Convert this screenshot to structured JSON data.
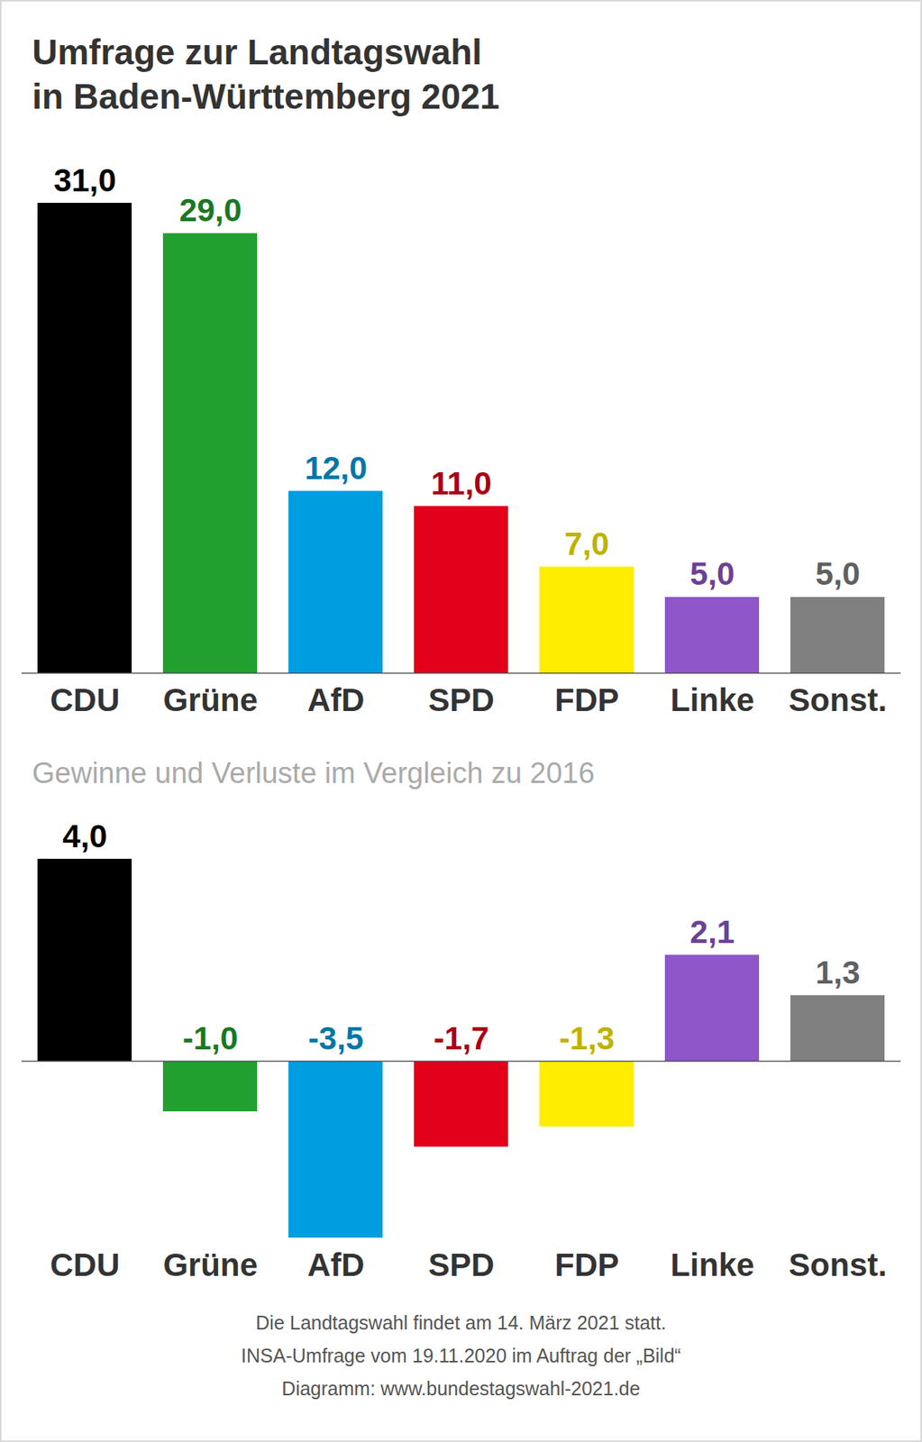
{
  "chart_data": [
    {
      "type": "bar",
      "title": "Umfrage zur Landtagswahl\nin Baden-Württemberg 2021",
      "categories": [
        "CDU",
        "Grüne",
        "AfD",
        "SPD",
        "FDP",
        "Linke",
        "Sonst."
      ],
      "values": [
        31.0,
        29.0,
        12.0,
        11.0,
        7.0,
        5.0,
        5.0
      ],
      "value_labels": [
        "31,0",
        "29,0",
        "12,0",
        "11,0",
        "7,0",
        "5,0",
        "5,0"
      ],
      "colors": [
        "#000000",
        "#21a02f",
        "#009ee0",
        "#e2001a",
        "#ffed00",
        "#8e56c8",
        "#808080"
      ],
      "ylim": [
        0,
        31
      ],
      "data_labels": true,
      "tick_labels": "x"
    },
    {
      "type": "bar",
      "title": "Gewinne und Verluste im Vergleich zu 2016",
      "categories": [
        "CDU",
        "Grüne",
        "AfD",
        "SPD",
        "FDP",
        "Linke",
        "Sonst."
      ],
      "values": [
        4.0,
        -1.0,
        -3.5,
        -1.7,
        -1.3,
        2.1,
        1.3
      ],
      "value_labels": [
        "4,0",
        "-1,0",
        "-3,5",
        "-1,7",
        "-1,3",
        "2,1",
        "1,3"
      ],
      "colors": [
        "#000000",
        "#21a02f",
        "#009ee0",
        "#e2001a",
        "#ffed00",
        "#8e56c8",
        "#808080"
      ],
      "ylim": [
        -3.5,
        4.0
      ],
      "data_labels": true,
      "tick_labels": "x",
      "annotations": [
        "Die Landtagswahl findet am 14. März 2021 statt.",
        "INSA-Umfrage vom 19.11.2020 im Auftrag der „Bild“",
        "Diagramm: www.bundestagswahl-2021.de"
      ]
    }
  ]
}
